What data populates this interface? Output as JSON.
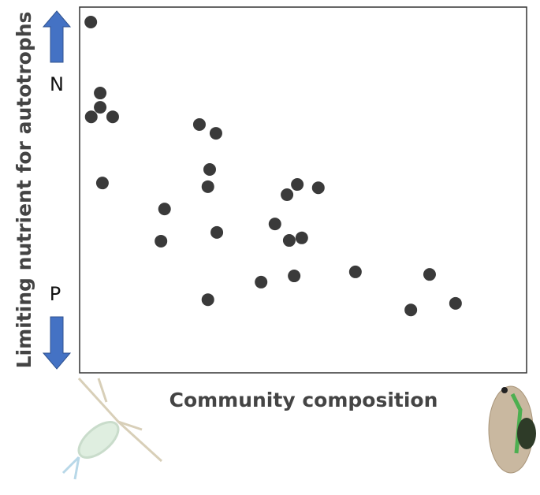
{
  "chart_data": {
    "type": "scatter",
    "x_label": "Community composition",
    "y_label": "Limiting nutrient for autotrophs",
    "annotations": [
      "N",
      "P"
    ],
    "color": "#3a3a3a",
    "xlim": [
      0,
      100
    ],
    "ylim": [
      0,
      100
    ],
    "x": [
      2.5,
      4.6,
      4.6,
      2.6,
      7.4,
      5.1,
      26.8,
      30.5,
      29.1,
      28.7,
      19.0,
      18.2,
      30.7,
      28.7,
      48.7,
      46.4,
      53.4,
      43.7,
      46.9,
      49.7,
      40.6,
      48.0,
      61.7,
      78.3,
      74.1,
      84.1
    ],
    "values": [
      95.9,
      76.5,
      72.6,
      70.0,
      70.0,
      51.9,
      67.9,
      65.5,
      55.6,
      50.9,
      44.8,
      36.0,
      38.4,
      20.0,
      51.5,
      48.7,
      50.6,
      40.7,
      36.2,
      36.9,
      24.8,
      26.5,
      27.6,
      26.9,
      17.2,
      19.0
    ]
  }
}
